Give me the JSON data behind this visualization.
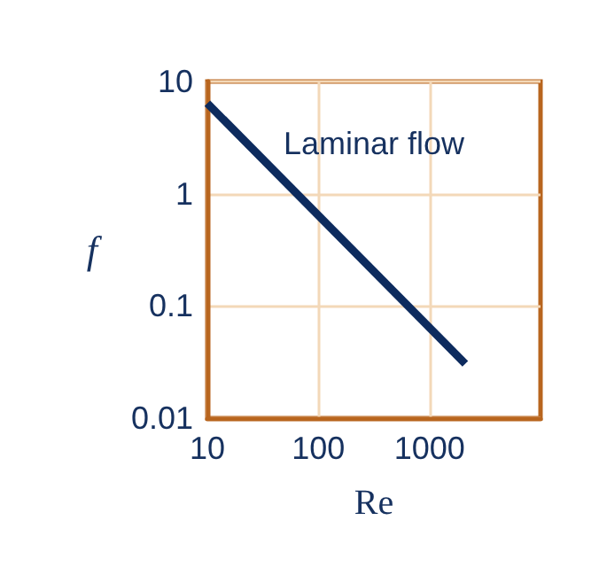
{
  "chart_data": {
    "type": "line",
    "xlabel": "Re",
    "ylabel": "f",
    "log": "xy",
    "grid": true,
    "marker": "none",
    "line_style": "solid",
    "x": [
      10,
      2100
    ],
    "series": [
      {
        "color": "#0d2b5e",
        "values": [
          6.4,
          0.0305
        ]
      }
    ],
    "xlim": [
      10,
      10000
    ],
    "xticks": [
      10,
      100,
      1000
    ],
    "ylim": [
      0.01,
      10
    ],
    "yticks": [
      0.01,
      0.1,
      1,
      10
    ],
    "annotations": [
      "Laminar flow"
    ]
  }
}
